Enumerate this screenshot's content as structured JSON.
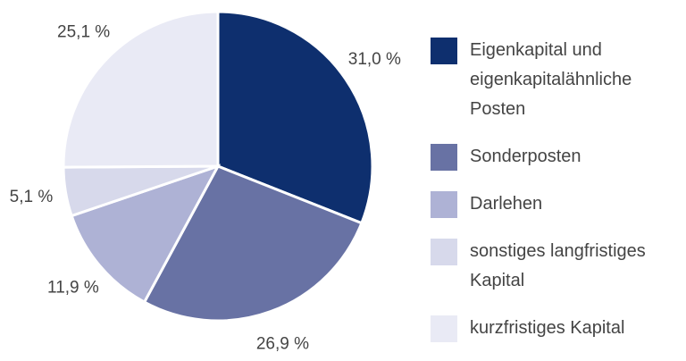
{
  "chart_data": {
    "type": "pie",
    "categories": [
      "Eigenkapital und eigenkapitalähnliche Posten",
      "Sonderposten",
      "Darlehen",
      "sonstiges langfristiges Kapital",
      "kurzfristiges Kapital"
    ],
    "values": [
      31.0,
      26.9,
      11.9,
      5.1,
      25.1
    ],
    "value_labels": [
      "31,0 %",
      "26,9 %",
      "11,9 %",
      "5,1 %",
      "25,1 %"
    ],
    "colors": [
      "#0e2f6e",
      "#6872a4",
      "#aeb2d5",
      "#d7d9eb",
      "#e9eaf5"
    ]
  }
}
